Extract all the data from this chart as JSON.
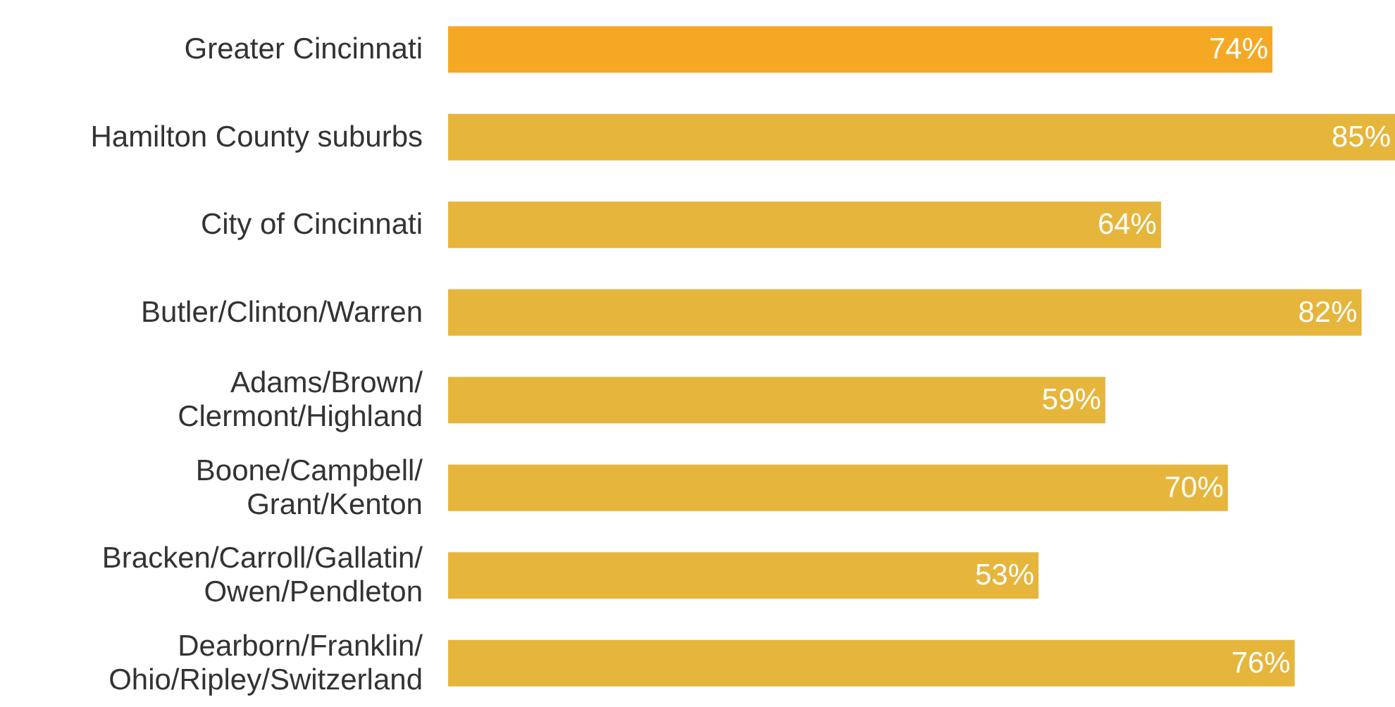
{
  "chart_data": {
    "type": "bar",
    "orientation": "horizontal",
    "categories": [
      "Greater Cincinnati",
      "Hamilton County suburbs",
      "City of Cincinnati",
      "Butler/Clinton/Warren",
      "Adams/Brown/\nClermont/Highland",
      "Boone/Campbell/\nGrant/Kenton",
      "Bracken/Carroll/Gallatin/\nOwen/Pendleton",
      "Dearborn/Franklin/\nOhio/Ripley/Switzerland"
    ],
    "values": [
      74,
      85,
      64,
      82,
      59,
      70,
      53,
      76
    ],
    "colors": [
      "#f5a823",
      "#e6b53b",
      "#e6b53b",
      "#e6b53b",
      "#e6b53b",
      "#e6b53b",
      "#e6b53b",
      "#e6b53b"
    ],
    "value_labels": [
      "74%",
      "85%",
      "64%",
      "82%",
      "59%",
      "70%",
      "53%",
      "76%"
    ]
  }
}
